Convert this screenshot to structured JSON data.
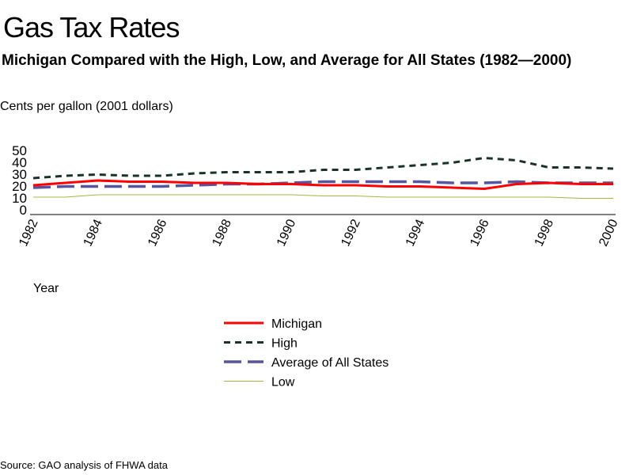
{
  "chart_data": {
    "type": "line",
    "title": "Gas Tax Rates",
    "subtitle": "Michigan Compared with the High, Low, and Average for All States (1982—2000)",
    "ylabel": "Cents per gallon (2001 dollars)",
    "xlabel": "Year",
    "x": [
      1982,
      1983,
      1984,
      1985,
      1986,
      1987,
      1988,
      1989,
      1990,
      1991,
      1992,
      1993,
      1994,
      1995,
      1996,
      1997,
      1998,
      1999,
      2000
    ],
    "xticks": [
      "1982",
      "1984",
      "1986",
      "1988",
      "1990",
      "1992",
      "1994",
      "1996",
      "1998",
      "2000"
    ],
    "yticks": [
      "0",
      "10",
      "20",
      "30",
      "40",
      "50"
    ],
    "ylim": [
      0,
      50
    ],
    "grid": false,
    "legend": "bottom-center",
    "series": [
      {
        "name": "Michigan",
        "color": "#ff0000",
        "style": "solid",
        "values": [
          20,
          22,
          24,
          23,
          23,
          22,
          22,
          21,
          21,
          20,
          20,
          19,
          19,
          18,
          17,
          21,
          22,
          21,
          21
        ]
      },
      {
        "name": "High",
        "color": "#1a3326",
        "style": "dash-short",
        "values": [
          26,
          28,
          29,
          28,
          28,
          30,
          31,
          31,
          31,
          33,
          33,
          35,
          37,
          39,
          43,
          41,
          35,
          35,
          34
        ]
      },
      {
        "name": "Average of All States",
        "color": "#5555a0",
        "style": "dash-long",
        "values": [
          18,
          19,
          19,
          19,
          19,
          20,
          21,
          21,
          22,
          23,
          23,
          23,
          23,
          22,
          22,
          23,
          22,
          22,
          22
        ]
      },
      {
        "name": "Low",
        "color": "#a0b840",
        "style": "solid-thin",
        "values": [
          10,
          10,
          12,
          12,
          12,
          12,
          12,
          12,
          12,
          11,
          11,
          10,
          10,
          10,
          10,
          10,
          10,
          9,
          9
        ]
      }
    ]
  },
  "source": "Source: GAO analysis of FHWA data"
}
